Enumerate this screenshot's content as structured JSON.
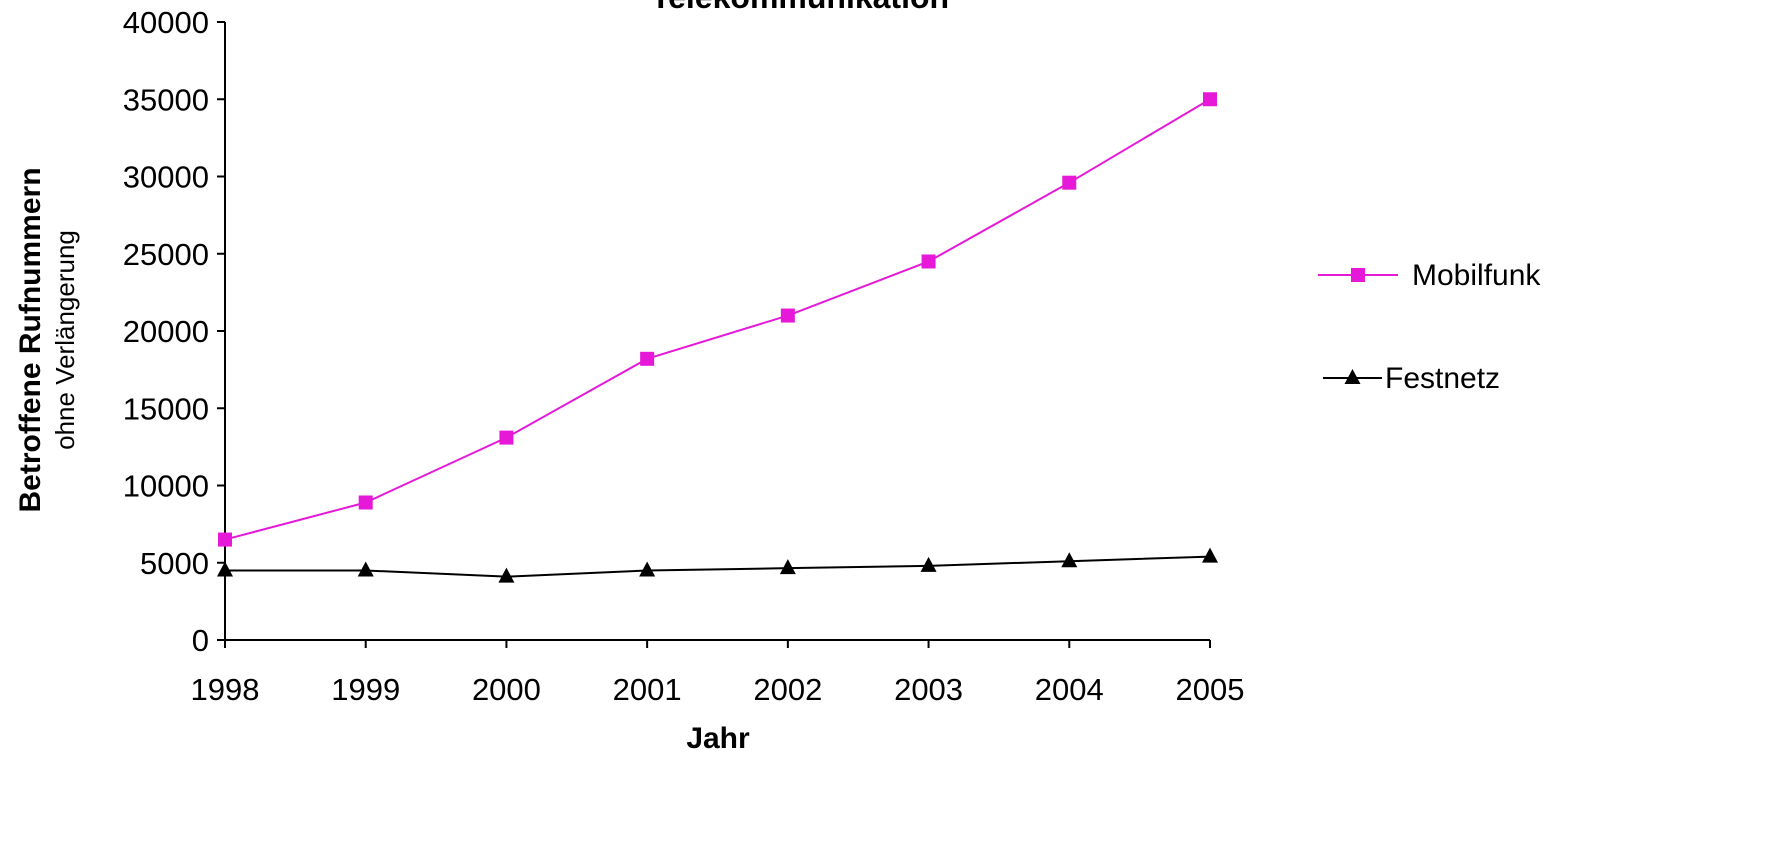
{
  "chart_data": {
    "type": "line",
    "title": "Telekommunikation",
    "xlabel": "Jahr",
    "ylabel": "Betroffene Rufnummern",
    "ylabel_sub": "ohne Verlängerung",
    "categories": [
      "1998",
      "1999",
      "2000",
      "2001",
      "2002",
      "2003",
      "2004",
      "2005"
    ],
    "yticks": [
      "0",
      "5000",
      "10000",
      "15000",
      "20000",
      "25000",
      "30000",
      "35000",
      "40000"
    ],
    "ylim": [
      0,
      40000
    ],
    "grid": false,
    "legend_position": "right",
    "series": [
      {
        "name": "Mobilfunk",
        "color": "#e619d9",
        "marker": "square",
        "values": [
          6500,
          8900,
          13100,
          18200,
          21000,
          24500,
          29600,
          35000
        ]
      },
      {
        "name": "Festnetz",
        "color": "#000000",
        "marker": "triangle",
        "values": [
          4500,
          4500,
          4100,
          4500,
          4650,
          4800,
          5100,
          5400
        ]
      }
    ]
  }
}
